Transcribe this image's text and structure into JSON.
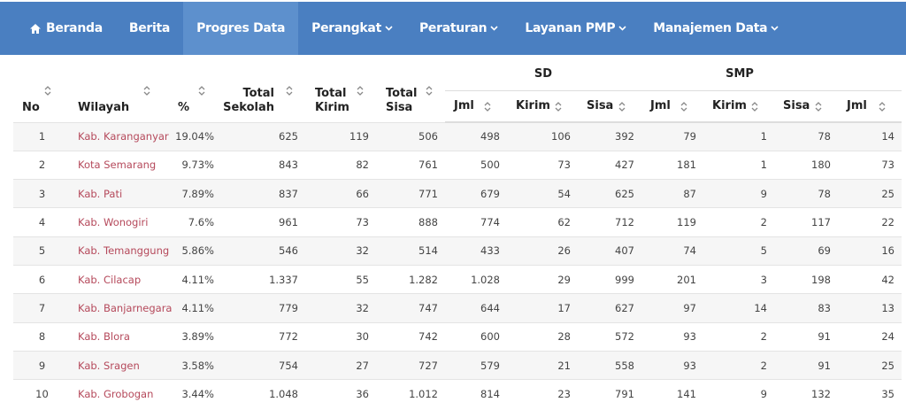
{
  "nav": [
    {
      "label": "Beranda",
      "icon": "home"
    },
    {
      "label": "Berita"
    },
    {
      "label": "Progres Data",
      "active": true
    },
    {
      "label": "Perangkat",
      "dropdown": true
    },
    {
      "label": "Peraturan",
      "dropdown": true
    },
    {
      "label": "Layanan PMP",
      "dropdown": true
    },
    {
      "label": "Manajemen Data",
      "dropdown": true
    }
  ],
  "table": {
    "groups": [
      {
        "label": "SD",
        "span": 3
      },
      {
        "label": "SMP",
        "span": 3
      }
    ],
    "columns": [
      "No",
      "Wilayah",
      "%",
      "Total Sekolah",
      "Total Kirim",
      "Total Sisa",
      "Jml",
      "Kirim",
      "Sisa",
      "Jml",
      "Kirim",
      "Sisa",
      "Jml"
    ],
    "rows": [
      [
        "1",
        "Kab. Karanganyar",
        "19.04%",
        "625",
        "119",
        "506",
        "498",
        "106",
        "392",
        "79",
        "1",
        "78",
        "14"
      ],
      [
        "2",
        "Kota Semarang",
        "9.73%",
        "843",
        "82",
        "761",
        "500",
        "73",
        "427",
        "181",
        "1",
        "180",
        "73"
      ],
      [
        "3",
        "Kab. Pati",
        "7.89%",
        "837",
        "66",
        "771",
        "679",
        "54",
        "625",
        "87",
        "9",
        "78",
        "25"
      ],
      [
        "4",
        "Kab. Wonogiri",
        "7.6%",
        "961",
        "73",
        "888",
        "774",
        "62",
        "712",
        "119",
        "2",
        "117",
        "22"
      ],
      [
        "5",
        "Kab. Temanggung",
        "5.86%",
        "546",
        "32",
        "514",
        "433",
        "26",
        "407",
        "74",
        "5",
        "69",
        "16"
      ],
      [
        "6",
        "Kab. Cilacap",
        "4.11%",
        "1.337",
        "55",
        "1.282",
        "1.028",
        "29",
        "999",
        "201",
        "3",
        "198",
        "42"
      ],
      [
        "7",
        "Kab. Banjarnegara",
        "4.11%",
        "779",
        "32",
        "747",
        "644",
        "17",
        "627",
        "97",
        "14",
        "83",
        "13"
      ],
      [
        "8",
        "Kab. Blora",
        "3.89%",
        "772",
        "30",
        "742",
        "600",
        "28",
        "572",
        "93",
        "2",
        "91",
        "24"
      ],
      [
        "9",
        "Kab. Sragen",
        "3.58%",
        "754",
        "27",
        "727",
        "579",
        "21",
        "558",
        "93",
        "2",
        "91",
        "25"
      ],
      [
        "10",
        "Kab. Grobogan",
        "3.44%",
        "1.048",
        "36",
        "1.012",
        "814",
        "23",
        "791",
        "141",
        "9",
        "132",
        "35"
      ]
    ]
  }
}
